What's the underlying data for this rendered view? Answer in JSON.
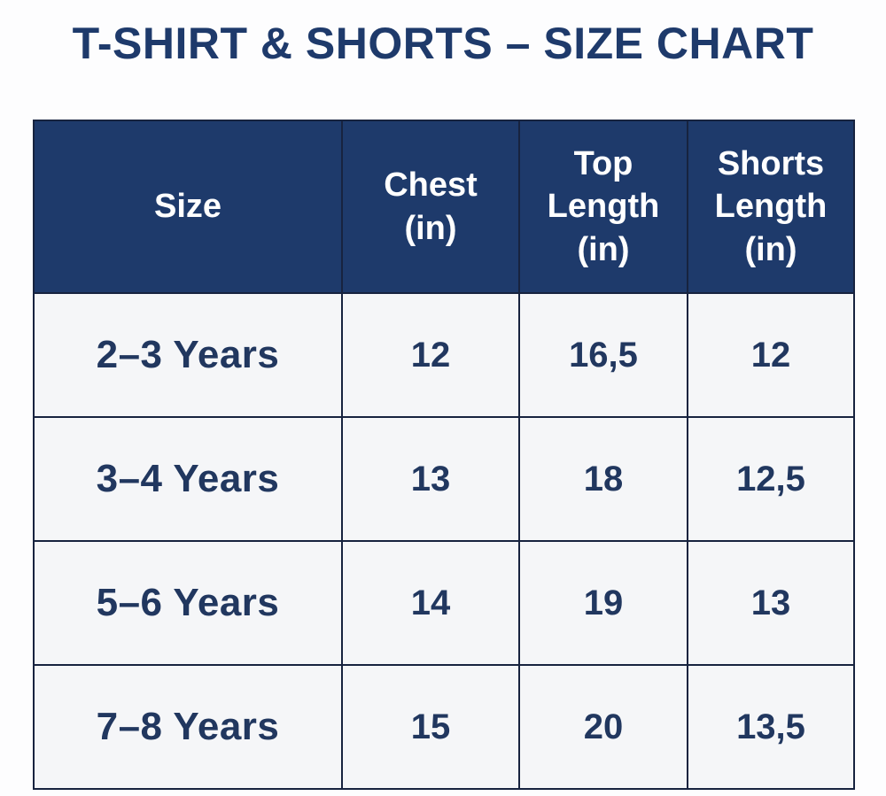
{
  "colors": {
    "navy": "#1e3a6b",
    "header_bg": "#1e3a6b",
    "header_text": "#ffffff",
    "body_text": "#21375f",
    "border": "#17233f",
    "cell_bg": "#f5f6f8",
    "page_bg": "#fdfdfe"
  },
  "chart_data": {
    "type": "table",
    "title": "T-SHIRT & SHORTS – SIZE CHART",
    "columns": [
      "Size",
      "Chest (in)",
      "Top Length (in)",
      "Shorts Length (in)"
    ],
    "rows": [
      [
        "2–3 Years",
        "12",
        "16,5",
        "12"
      ],
      [
        "3–4 Years",
        "13",
        "18",
        "12,5"
      ],
      [
        "5–6 Years",
        "14",
        "19",
        "13"
      ],
      [
        "7–8 Years",
        "15",
        "20",
        "13,5"
      ]
    ]
  }
}
